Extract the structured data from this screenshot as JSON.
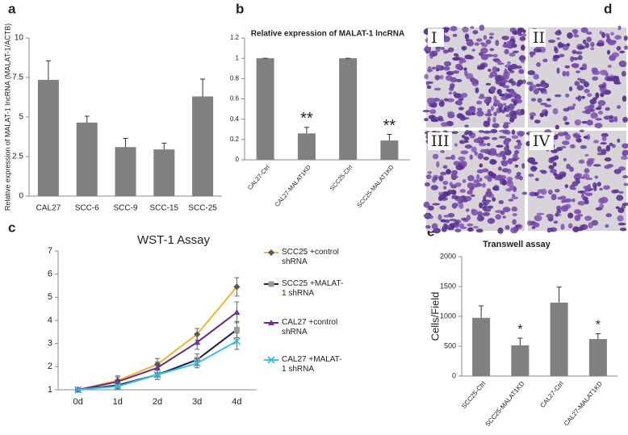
{
  "chart_data": [
    {
      "type": "bar",
      "panel_label": "a",
      "ylabel": "Relative expression of MALAT-1 lncRNA (MALAT-1/ACTB)",
      "categories": [
        "CAL27",
        "SCC-6",
        "SCC-9",
        "SCC-15",
        "SCC-25"
      ],
      "values": [
        7.35,
        4.65,
        3.1,
        2.95,
        6.3
      ],
      "errors": [
        1.2,
        0.4,
        0.55,
        0.4,
        1.1
      ],
      "color": "#808080",
      "ylim": [
        0,
        10
      ],
      "yticks": [
        0,
        2.5,
        5,
        7.5,
        10
      ]
    },
    {
      "type": "bar",
      "panel_label": "b",
      "title": "Relative expression of MALAT-1 lncRNA",
      "categories": [
        "CAL27-Ctrl",
        "CAL27-MALAT1KD",
        "SCC25-Ctrl",
        "SCC25-MALAT1KD"
      ],
      "values": [
        1,
        0.26,
        1,
        0.19
      ],
      "errors": [
        0,
        0.06,
        0,
        0.06
      ],
      "bar_labels": [
        null,
        "**",
        null,
        "**"
      ],
      "color": "#808080",
      "ylim": [
        0,
        1.2
      ],
      "yticks": [
        0,
        0.2,
        0.4,
        0.6,
        0.8,
        1,
        1.2
      ]
    },
    {
      "type": "line",
      "panel_label": "c",
      "title": "WST-1 Assay",
      "categories": [
        "0d",
        "1d",
        "2d",
        "3d",
        "4d"
      ],
      "series": [
        {
          "name": "SCC25 +control shRNA",
          "color": "#f5b335",
          "values": [
            1,
            1.4,
            2.1,
            3.4,
            5.45
          ],
          "errors": [
            0.05,
            0.2,
            0.25,
            0.25,
            0.4
          ]
        },
        {
          "name": "SCC25 +MALAT-1 shRNA",
          "color": "#1f1f4a",
          "values": [
            1,
            1.2,
            1.65,
            2.3,
            3.6
          ],
          "errors": [
            0.05,
            0.15,
            0.2,
            0.25,
            0.35
          ]
        },
        {
          "name": "CAL27 +control shRNA",
          "color": "#6a2c80",
          "values": [
            1,
            1.35,
            1.95,
            3.05,
            4.35
          ],
          "errors": [
            0.05,
            0.2,
            0.25,
            0.3,
            0.45
          ]
        },
        {
          "name": "CAL27 +MALAT-1 shRNA",
          "color": "#3ec1e6",
          "values": [
            1,
            1.15,
            1.65,
            2.15,
            3.1
          ],
          "errors": [
            0.05,
            0.15,
            0.2,
            0.2,
            0.35
          ]
        }
      ],
      "ylim": [
        1,
        7
      ],
      "yticks": [
        1,
        2,
        3,
        4,
        5,
        6,
        7
      ]
    },
    {
      "type": "bar",
      "panel_label": "e",
      "title": "Transwell assay",
      "ylabel": "Cells/Field",
      "categories": [
        "SCC25-Ctrl",
        "SCC25-MALAT1KD",
        "CAL27-Ctrl",
        "CAL27-MALAT1KD"
      ],
      "values": [
        975,
        515,
        1230,
        620
      ],
      "errors": [
        200,
        120,
        260,
        90
      ],
      "bar_labels": [
        null,
        "*",
        null,
        "*"
      ],
      "color": "#808080",
      "ylim": [
        0,
        2000
      ],
      "yticks": [
        0,
        500,
        1000,
        1500,
        2000
      ]
    }
  ],
  "panel_d": {
    "panel_label": "d",
    "images": [
      "I",
      "II",
      "III",
      "IV"
    ]
  }
}
